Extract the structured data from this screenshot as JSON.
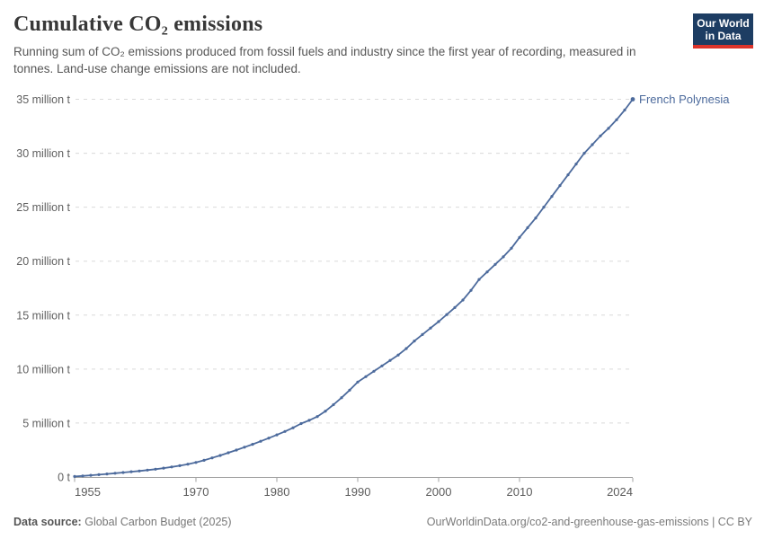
{
  "header": {
    "title": "Cumulative CO₂ emissions",
    "subtitle": "Running sum of CO₂ emissions produced from fossil fuels and industry since the first year of recording, measured in tonnes. Land-use change emissions are not included.",
    "logo": {
      "line1": "Our World",
      "line2": "in Data",
      "bg_color": "#1d3d63",
      "accent_color": "#dc342b"
    }
  },
  "chart_data": {
    "type": "line",
    "title": "Cumulative CO₂ emissions",
    "xlabel": "",
    "ylabel": "",
    "unit": "million tonnes",
    "xlim": [
      1955,
      2024
    ],
    "ylim": [
      0,
      35
    ],
    "grid": "horizontal-dashed",
    "legend_position": "line-end-label",
    "x_ticks": [
      1955,
      1970,
      1980,
      1990,
      2000,
      2010,
      2024
    ],
    "y_ticks": [
      {
        "v": 0,
        "label": "0 t"
      },
      {
        "v": 5,
        "label": "5 million t"
      },
      {
        "v": 10,
        "label": "10 million t"
      },
      {
        "v": 15,
        "label": "15 million t"
      },
      {
        "v": 20,
        "label": "20 million t"
      },
      {
        "v": 25,
        "label": "25 million t"
      },
      {
        "v": 30,
        "label": "30 million t"
      },
      {
        "v": 35,
        "label": "35 million t"
      }
    ],
    "x": [
      1955,
      1956,
      1957,
      1958,
      1959,
      1960,
      1961,
      1962,
      1963,
      1964,
      1965,
      1966,
      1967,
      1968,
      1969,
      1970,
      1971,
      1972,
      1973,
      1974,
      1975,
      1976,
      1977,
      1978,
      1979,
      1980,
      1981,
      1982,
      1983,
      1984,
      1985,
      1986,
      1987,
      1988,
      1989,
      1990,
      1991,
      1992,
      1993,
      1994,
      1995,
      1996,
      1997,
      1998,
      1999,
      2000,
      2001,
      2002,
      2003,
      2004,
      2005,
      2006,
      2007,
      2008,
      2009,
      2010,
      2011,
      2012,
      2013,
      2014,
      2015,
      2016,
      2017,
      2018,
      2019,
      2020,
      2021,
      2022,
      2023,
      2024
    ],
    "series": [
      {
        "name": "French Polynesia",
        "color": "#4c6a9c",
        "values": [
          0.05,
          0.1,
          0.16,
          0.22,
          0.28,
          0.35,
          0.42,
          0.49,
          0.56,
          0.64,
          0.72,
          0.82,
          0.93,
          1.05,
          1.19,
          1.35,
          1.55,
          1.77,
          2.0,
          2.25,
          2.5,
          2.76,
          3.03,
          3.31,
          3.6,
          3.9,
          4.22,
          4.56,
          4.95,
          5.25,
          5.6,
          6.1,
          6.7,
          7.35,
          8.05,
          8.8,
          9.3,
          9.8,
          10.3,
          10.8,
          11.3,
          11.9,
          12.6,
          13.2,
          13.8,
          14.4,
          15.05,
          15.7,
          16.4,
          17.3,
          18.3,
          19.0,
          19.7,
          20.4,
          21.2,
          22.2,
          23.1,
          24.0,
          25.0,
          26.0,
          27.0,
          28.0,
          29.0,
          30.0,
          30.8,
          31.6,
          32.3,
          33.1,
          34.0,
          35.0
        ]
      }
    ]
  },
  "footer": {
    "source_label": "Data source:",
    "source_value": "Global Carbon Budget (2025)",
    "credit": "OurWorldinData.org/co2-and-greenhouse-gas-emissions | CC BY"
  }
}
